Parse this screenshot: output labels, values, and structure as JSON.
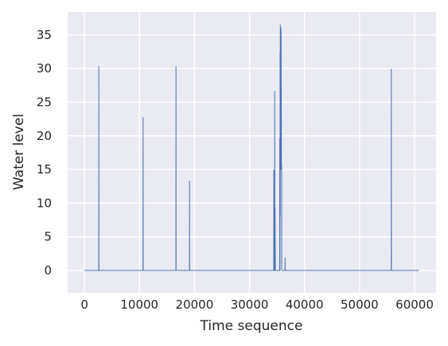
{
  "chart_data": {
    "type": "line",
    "title": "",
    "xlabel": "Time sequence",
    "ylabel": "Water level",
    "xlim": [
      -3050,
      63900
    ],
    "ylim": [
      -3.3,
      38.4
    ],
    "xticks": [
      0,
      10000,
      20000,
      30000,
      40000,
      50000,
      60000
    ],
    "yticks": [
      0,
      5,
      10,
      15,
      20,
      25,
      30,
      35
    ],
    "xtick_labels": [
      "0",
      "10000",
      "20000",
      "30000",
      "40000",
      "50000",
      "60000"
    ],
    "ytick_labels": [
      "0",
      "5",
      "10",
      "15",
      "20",
      "25",
      "30",
      "35"
    ],
    "grid": true,
    "legend": "none",
    "colors": {
      "background": "#eaeaf2",
      "grid": "#ffffff",
      "line": "#4c72b0"
    },
    "series": [
      {
        "x": [
          0,
          2600,
          2620,
          2640,
          10650,
          10670,
          10690,
          16620,
          16640,
          16660,
          19080,
          19100,
          19120,
          34400,
          34420,
          34440,
          34460,
          34560,
          34580,
          34600,
          34620,
          34640,
          34700,
          34720,
          34740,
          35480,
          35500,
          35520,
          35540,
          35560,
          35580,
          35600,
          35620,
          35640,
          35660,
          35680,
          35700,
          35720,
          35740,
          35760,
          35780,
          35800,
          35820,
          35840,
          35860,
          36450,
          36470,
          36490,
          55750,
          55770,
          55790,
          60800
        ],
        "y": [
          0,
          0,
          30.3,
          0,
          0,
          22.7,
          0,
          0,
          30.3,
          0,
          0,
          13.3,
          0,
          0,
          14.9,
          6,
          0,
          0,
          26.6,
          9,
          0,
          9.2,
          0,
          0,
          0,
          0,
          19.6,
          7.5,
          0,
          32.5,
          8,
          36.5,
          35,
          34.5,
          25,
          33,
          15,
          36,
          35,
          22,
          27,
          15.4,
          16,
          15,
          0,
          0,
          1.9,
          0,
          0,
          29.9,
          0,
          0
        ]
      }
    ]
  }
}
